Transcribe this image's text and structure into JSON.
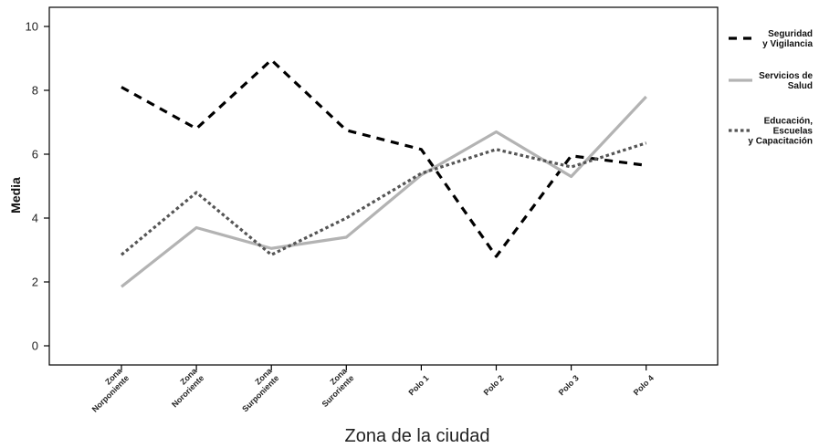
{
  "chart_data": {
    "type": "line",
    "categories": [
      "Zona\nNorponiente",
      "Zona\nNororiente",
      "Zona\nSurponiente",
      "Zona\nSuroriente",
      "Polo 1",
      "Polo 2",
      "Polo 3",
      "Polo 4"
    ],
    "series": [
      {
        "name": "Seguridad\ny Vigilancia",
        "values": [
          8.1,
          6.8,
          8.95,
          6.75,
          6.15,
          2.8,
          5.95,
          5.65
        ],
        "color": "#000000",
        "dash": "dashed"
      },
      {
        "name": "Servicios de\nSalud",
        "values": [
          1.85,
          3.7,
          3.05,
          3.4,
          5.35,
          6.7,
          5.3,
          7.8
        ],
        "color": "#b3b3b3",
        "dash": "solid"
      },
      {
        "name": "Educación,\nEscuelas\ny Capacitación",
        "values": [
          2.85,
          4.8,
          2.85,
          4.0,
          5.4,
          6.15,
          5.6,
          6.35
        ],
        "color": "#555555",
        "dash": "dotted"
      }
    ],
    "title": "",
    "xlabel": "Zona de la ciudad",
    "ylabel": "Media",
    "ylim": [
      -0.6,
      10.6
    ],
    "yticks": [
      0,
      2,
      4,
      6,
      8,
      10
    ],
    "grid": false,
    "legend_position": "right"
  }
}
